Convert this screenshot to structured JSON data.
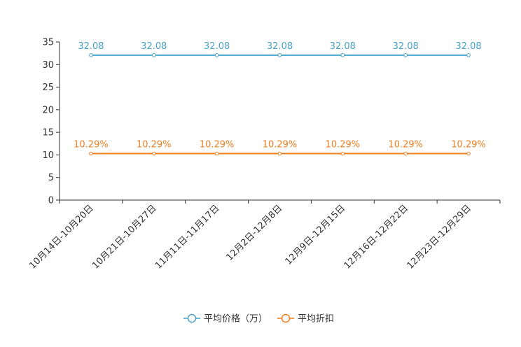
{
  "chart_data": {
    "type": "line",
    "title": "",
    "xlabel": "",
    "ylabel": "",
    "ylim": [
      0,
      35
    ],
    "yticks": [
      0,
      5,
      10,
      15,
      20,
      25,
      30,
      35
    ],
    "categories": [
      "10月14日-10月20日",
      "10月21日-10月27日",
      "11月11日-11月17日",
      "12月2日-12月8日",
      "12月9日-12月15日",
      "12月16日-12月22日",
      "12月23日-12月29日"
    ],
    "legend_position": "bottom",
    "grid": false,
    "series": [
      {
        "name": "平均价格（万）",
        "color": "#4aa3c8",
        "values": [
          32.08,
          32.08,
          32.08,
          32.08,
          32.08,
          32.08,
          32.08
        ],
        "labels": [
          "32.08",
          "32.08",
          "32.08",
          "32.08",
          "32.08",
          "32.08",
          "32.08"
        ]
      },
      {
        "name": "平均折扣",
        "color": "#f07f1f",
        "values": [
          10.29,
          10.29,
          10.29,
          10.29,
          10.29,
          10.29,
          10.29
        ],
        "labels": [
          "10.29%",
          "10.29%",
          "10.29%",
          "10.29%",
          "10.29%",
          "10.29%",
          "10.29%"
        ]
      }
    ]
  }
}
